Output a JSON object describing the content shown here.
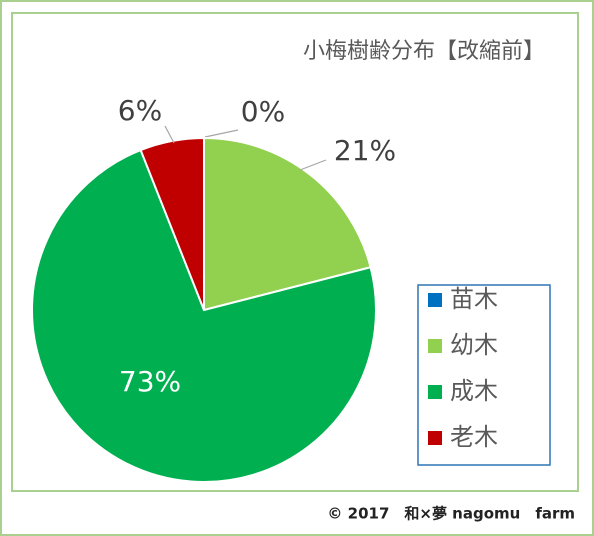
{
  "chart_data": {
    "type": "pie",
    "title": "小梅樹齢分布【改縮前】",
    "categories": [
      "苗木",
      "幼木",
      "成木",
      "老木"
    ],
    "values": [
      0,
      21,
      73,
      6
    ],
    "value_labels": [
      "0%",
      "21%",
      "73%",
      "6%"
    ],
    "colors": [
      "#0070c0",
      "#92d050",
      "#00b050",
      "#c00000"
    ]
  },
  "footer": "© 2017　和×夢 nagomu　farm"
}
